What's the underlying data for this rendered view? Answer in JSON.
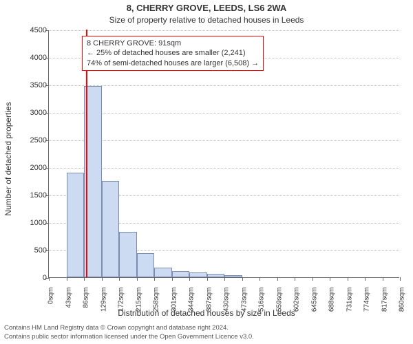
{
  "title_main": "8, CHERRY GROVE, LEEDS, LS6 2WA",
  "title_sub": "Size of property relative to detached houses in Leeds",
  "ylabel": "Number of detached properties",
  "xlabel": "Distribution of detached houses by size in Leeds",
  "ylim": [
    0,
    4500
  ],
  "ytick_step": 500,
  "xlim_sqm": [
    0,
    860
  ],
  "xtick_step_sqm": 43,
  "xtick_unit": "sqm",
  "chart": {
    "type": "histogram",
    "bin_width_sqm": 43,
    "bar_fill": "#cddbf2",
    "bar_border": "#7a8db0",
    "bins": [
      {
        "start": 0,
        "count": 0
      },
      {
        "start": 43,
        "count": 1900
      },
      {
        "start": 86,
        "count": 3480
      },
      {
        "start": 129,
        "count": 1750
      },
      {
        "start": 172,
        "count": 830
      },
      {
        "start": 215,
        "count": 440
      },
      {
        "start": 258,
        "count": 180
      },
      {
        "start": 301,
        "count": 110
      },
      {
        "start": 344,
        "count": 90
      },
      {
        "start": 387,
        "count": 60
      },
      {
        "start": 430,
        "count": 40
      },
      {
        "start": 473,
        "count": 0
      },
      {
        "start": 516,
        "count": 0
      },
      {
        "start": 559,
        "count": 0
      },
      {
        "start": 602,
        "count": 0
      },
      {
        "start": 645,
        "count": 0
      },
      {
        "start": 688,
        "count": 0
      },
      {
        "start": 731,
        "count": 0
      },
      {
        "start": 774,
        "count": 0
      },
      {
        "start": 817,
        "count": 0
      }
    ]
  },
  "marker": {
    "value_sqm": 91,
    "color": "#ff0000"
  },
  "annotation": {
    "border_color": "#ff0000",
    "lines": [
      "8 CHERRY GROVE: 91sqm",
      "← 25% of detached houses are smaller (2,241)",
      "74% of semi-detached houses are larger (6,508) →"
    ]
  },
  "colors": {
    "background": "#ffffff",
    "axis": "#666666",
    "grid": "#bfbfbf",
    "text": "#333333"
  },
  "fonts": {
    "title_size_pt": 13,
    "subtitle_size_pt": 12,
    "axis_label_size_pt": 12,
    "tick_size_pt": 11,
    "annotation_size_pt": 11,
    "footer_size_pt": 9.5
  },
  "footer": {
    "line1": "Contains HM Land Registry data © Crown copyright and database right 2024.",
    "line2": "Contains public sector information licensed under the Open Government Licence v3.0."
  }
}
